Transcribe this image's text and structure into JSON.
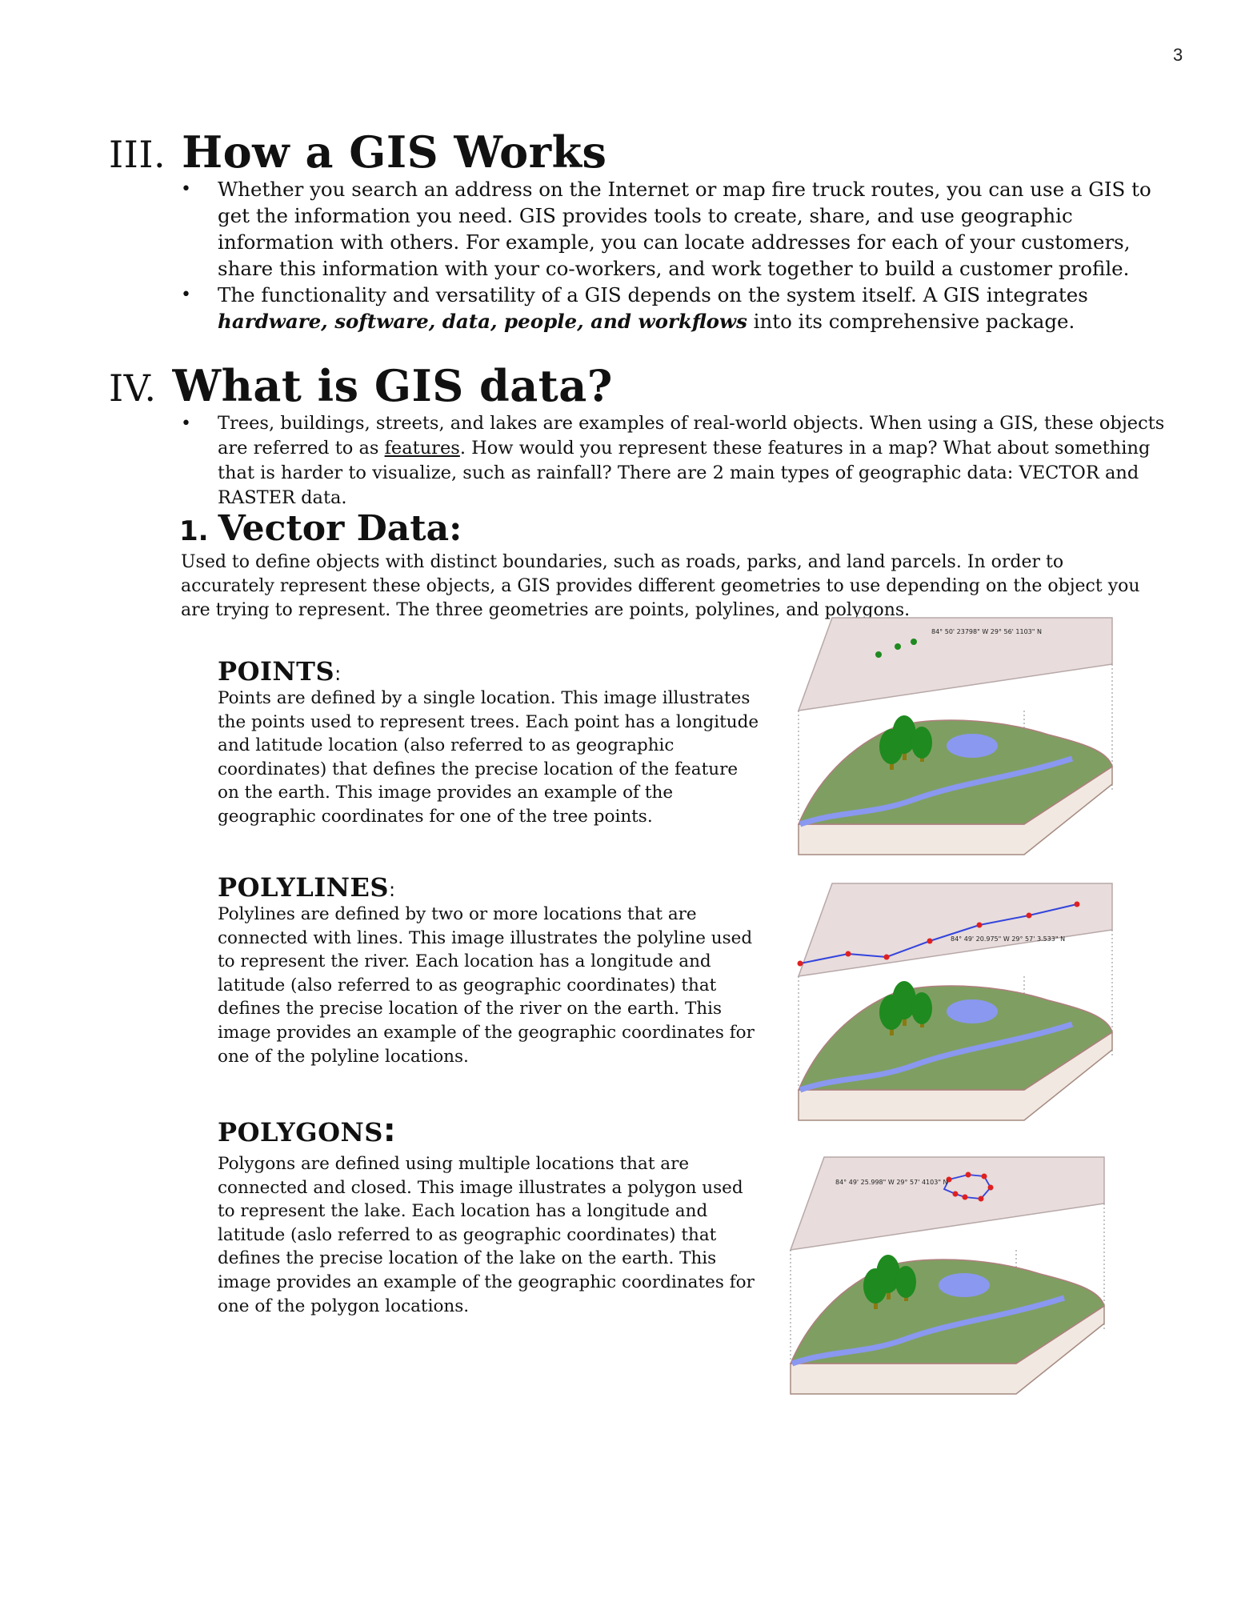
{
  "page_number": "3",
  "section3": {
    "number": "III.",
    "title": "How a GIS Works",
    "bullet1": "Whether you search an address on the Internet or map fire truck routes, you can use a GIS to get the information you need. GIS provides tools to create, share, and use geographic information with others.  For example, you can locate addresses for each of your customers, share this information with your co-workers, and work together to build a customer profile.",
    "bullet2_before": "The functionality and versatility of a GIS depends on the system itself. A GIS integrates ",
    "bullet2_bold": "hardware, software, data, people, and workflows",
    "bullet2_after": " into its comprehensive package."
  },
  "section4": {
    "number": "IV.",
    "title": "What is GIS data?",
    "bullet_before": "Trees, buildings, streets, and lakes are examples of real-world objects. When using a GIS, these objects are referred to as ",
    "bullet_underlined": "features",
    "bullet_after": ". How would you represent these features in a map? What about something that is harder to visualize, such as rainfall?  There are 2 main types of geographic data: VECTOR and RASTER data."
  },
  "vector": {
    "number": "1.",
    "title": "Vector Data:",
    "intro": "Used to define objects with distinct boundaries, such as roads, parks, and land parcels. In order to accurately represent these objects, a GIS provides different geometries to use depending on the object you are trying to represent. The three geometries are points, polylines, and polygons."
  },
  "points": {
    "heading": "POINTS",
    "colon": ":",
    "text": "Points are defined by a single location. This image illustrates the points used to represent trees. Each point has a longitude and latitude location (also referred to as geographic coordinates) that defines the precise location of the feature on the earth. This image provides an example of the geographic coordinates for one of the tree points.",
    "coord_label": "84° 50' 23798\" W  29° 56' 1103\" N"
  },
  "polylines": {
    "heading": "POLYLINES",
    "colon": ":",
    "text": "Polylines are defined by two or more locations that are connected with lines. This image illustrates the polyline used to represent the river. Each location has a longitude and latitude (also referred to as geographic coordinates) that defines the precise location of the river on the earth. This image provides an example of the geographic coordinates for one of the polyline locations.",
    "coord_label": "84° 49' 20.975\" W 29° 57' 3.533\" N"
  },
  "polygons": {
    "heading": "POLYGONS",
    "colon": ":",
    "text": "Polygons are defined using multiple locations that are connected and closed. This image illustrates a polygon used to represent the lake. Each location has a longitude and latitude (aslo referred to as geographic coordinates) that defines the precise location of the lake on the earth. This image provides an example of the geographic coordinates for one of the polygon locations.",
    "coord_label": "84° 49' 25.998\" W 29° 57' 4103\" N"
  },
  "colors": {
    "plane": "#e8dcdc",
    "land": "#7f9f62",
    "water": "#8a98f0",
    "tree": "#1f8a1f",
    "trunk": "#8a7a10",
    "vertex": "#e02020",
    "line": "#3344dd"
  }
}
